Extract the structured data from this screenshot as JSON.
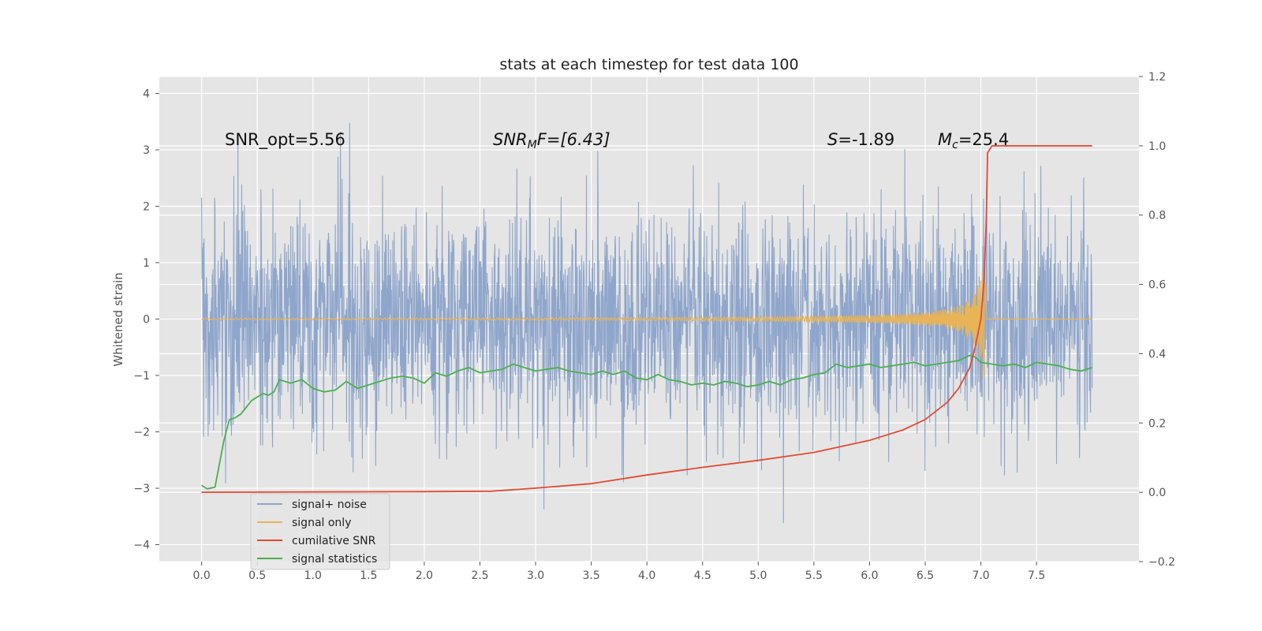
{
  "chart_data": {
    "type": "line",
    "title": "stats at each timestep for test data 100",
    "ylabel": "Whitened strain",
    "xlabel": "",
    "xlim": [
      -0.38,
      8.42
    ],
    "ylim": [
      -4.3,
      4.3
    ],
    "y2lim": [
      -0.2,
      1.2
    ],
    "x_ticks": [
      "0.0",
      "0.5",
      "1.0",
      "1.5",
      "2.0",
      "2.5",
      "3.0",
      "3.5",
      "4.0",
      "4.5",
      "5.0",
      "5.5",
      "6.0",
      "6.5",
      "7.0",
      "7.5"
    ],
    "y_ticks": [
      "4",
      "3",
      "2",
      "1",
      "0",
      "−1",
      "−2",
      "−3",
      "−4"
    ],
    "y2_ticks": [
      "1.2",
      "1.0",
      "0.8",
      "0.6",
      "0.4",
      "0.2",
      "0.0",
      "−0.2"
    ],
    "grid": true,
    "background": "#e5e5e5",
    "annotations": {
      "snr_opt": "SNR_opt=5.56",
      "snr_mf_label": "SNR",
      "snr_mf_sub": "M",
      "snr_mf_rest": "F=[6.43]",
      "s_label": "S",
      "s_value": "=-1.89",
      "mc_label": "M",
      "mc_sub": "c",
      "mc_value": "=25.4"
    },
    "legend": {
      "position": "lower-left",
      "entries": [
        "signal+ noise",
        "signal only",
        "cumilative SNR",
        "signal statistics"
      ]
    },
    "colors": {
      "noise": "#8fa6cc",
      "signal": "#e9b455",
      "snr": "#e24a33",
      "stats": "#4caf50"
    },
    "series": [
      {
        "name": "signal+ noise",
        "axis": "left",
        "summary": {
          "x_range": [
            0.0,
            8.0
          ],
          "mean": 0.0,
          "std": 1.0,
          "min": -3.75,
          "max": 3.97
        }
      },
      {
        "name": "signal only",
        "axis": "left",
        "description": "chirp waveform near 0, growing in amplitude up to about ±1.1 near t=7.0, then zero",
        "peak_time": 7.05,
        "peak_amplitude": 1.1
      },
      {
        "name": "cumilative SNR",
        "axis": "right",
        "x": [
          0.0,
          1.0,
          2.0,
          2.6,
          3.0,
          3.5,
          4.0,
          4.5,
          5.0,
          5.5,
          6.0,
          6.3,
          6.5,
          6.7,
          6.8,
          6.9,
          6.95,
          7.0,
          7.03,
          7.05,
          7.06,
          7.1,
          7.5,
          8.0
        ],
        "y": [
          0.0,
          0.001,
          0.002,
          0.003,
          0.012,
          0.025,
          0.05,
          0.072,
          0.092,
          0.115,
          0.15,
          0.18,
          0.21,
          0.26,
          0.3,
          0.36,
          0.42,
          0.5,
          0.62,
          0.8,
          0.98,
          1.0,
          1.0,
          1.0
        ]
      },
      {
        "name": "signal statistics",
        "axis": "right",
        "x": [
          0.0,
          0.05,
          0.12,
          0.2,
          0.25,
          0.3,
          0.35,
          0.4,
          0.45,
          0.5,
          0.55,
          0.6,
          0.65,
          0.7,
          0.8,
          0.9,
          1.0,
          1.1,
          1.2,
          1.3,
          1.4,
          1.5,
          1.6,
          1.7,
          1.8,
          1.9,
          2.0,
          2.1,
          2.2,
          2.3,
          2.4,
          2.5,
          2.6,
          2.7,
          2.8,
          2.9,
          3.0,
          3.1,
          3.2,
          3.3,
          3.4,
          3.5,
          3.6,
          3.7,
          3.8,
          3.9,
          4.0,
          4.1,
          4.2,
          4.3,
          4.4,
          4.5,
          4.6,
          4.7,
          4.8,
          4.9,
          5.0,
          5.1,
          5.2,
          5.3,
          5.4,
          5.5,
          5.6,
          5.7,
          5.8,
          5.9,
          6.0,
          6.1,
          6.2,
          6.3,
          6.4,
          6.5,
          6.6,
          6.7,
          6.8,
          6.9,
          6.95,
          7.0,
          7.1,
          7.2,
          7.3,
          7.4,
          7.5,
          7.6,
          7.7,
          7.8,
          7.9,
          8.0
        ],
        "y": [
          0.02,
          0.01,
          0.015,
          0.15,
          0.21,
          0.215,
          0.225,
          0.245,
          0.265,
          0.275,
          0.285,
          0.28,
          0.29,
          0.325,
          0.315,
          0.325,
          0.3,
          0.29,
          0.295,
          0.32,
          0.3,
          0.31,
          0.32,
          0.33,
          0.335,
          0.33,
          0.315,
          0.345,
          0.335,
          0.35,
          0.36,
          0.345,
          0.35,
          0.355,
          0.37,
          0.36,
          0.35,
          0.355,
          0.36,
          0.35,
          0.345,
          0.34,
          0.35,
          0.34,
          0.35,
          0.33,
          0.325,
          0.34,
          0.325,
          0.32,
          0.31,
          0.315,
          0.31,
          0.32,
          0.315,
          0.305,
          0.31,
          0.32,
          0.31,
          0.325,
          0.33,
          0.34,
          0.345,
          0.37,
          0.36,
          0.365,
          0.37,
          0.36,
          0.365,
          0.37,
          0.375,
          0.365,
          0.37,
          0.375,
          0.38,
          0.395,
          0.39,
          0.375,
          0.37,
          0.365,
          0.37,
          0.36,
          0.375,
          0.37,
          0.365,
          0.355,
          0.35,
          0.36
        ]
      }
    ]
  }
}
